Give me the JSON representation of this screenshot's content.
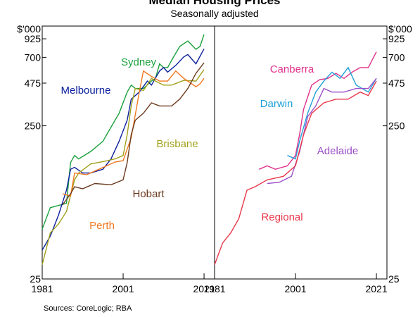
{
  "title": "Median Housing Prices",
  "subtitle": "Seasonally adjusted",
  "source": "Sources: CoreLogic; RBA",
  "chart_data": [
    {
      "type": "line",
      "axis_label": "$'000",
      "axis_side": "left",
      "log_scale": true,
      "xlim": [
        1981,
        2023.6
      ],
      "xticks": [
        1981,
        2001,
        2021
      ],
      "ylim": [
        25,
        1120
      ],
      "yticks": [
        25,
        250,
        475,
        700,
        925
      ],
      "series": [
        {
          "name": "Sydney",
          "color": "#1aa03c",
          "x": [
            1981,
            1983,
            1987,
            1988,
            1989,
            1990,
            1993,
            1996,
            1998,
            2000,
            2002,
            2003,
            2004,
            2006,
            2008,
            2009,
            2010,
            2011,
            2012,
            2013,
            2015,
            2017,
            2019,
            2020,
            2021
          ],
          "values": [
            53,
            73,
            78,
            144,
            160,
            152,
            170,
            198,
            245,
            302,
            415,
            461,
            438,
            438,
            490,
            510,
            634,
            600,
            600,
            670,
            825,
            895,
            790,
            825,
            987
          ]
        },
        {
          "name": "Melbourne",
          "color": "#0a1f9c",
          "x": [
            1981,
            1983,
            1985,
            1987,
            1988,
            1989,
            1991,
            1993,
            1996,
            1998,
            2000,
            2002,
            2003,
            2005,
            2007,
            2008,
            2010,
            2011,
            2012,
            2014,
            2016,
            2017,
            2019,
            2021
          ],
          "values": [
            38.6,
            47.6,
            65,
            95,
            130,
            134,
            123,
            123,
            130,
            152,
            198,
            272,
            373,
            415,
            490,
            461,
            570,
            600,
            560,
            620,
            705,
            730,
            635,
            795
          ]
        },
        {
          "name": "Brisbane",
          "color": "#a0a01a",
          "x": [
            1981,
            1983,
            1985,
            1987,
            1989,
            1990,
            1993,
            1996,
            1999,
            2001,
            2002,
            2003,
            2004,
            2006,
            2008,
            2009,
            2011,
            2013,
            2016,
            2019,
            2021
          ],
          "values": [
            31,
            50,
            57,
            69,
            111,
            123,
            141,
            146,
            152,
            160,
            219,
            337,
            438,
            425,
            510,
            490,
            461,
            461,
            495,
            490,
            582
          ]
        },
        {
          "name": "Perth",
          "color": "#f07820",
          "x": [
            1986,
            1988,
            1989,
            1992,
            1995,
            1999,
            2001,
            2003,
            2005,
            2006,
            2008,
            2010,
            2012,
            2014,
            2016,
            2019,
            2020,
            2021
          ],
          "values": [
            90,
            87,
            123,
            120,
            130,
            145,
            148,
            209,
            415,
            570,
            525,
            490,
            490,
            570,
            510,
            450,
            470,
            510
          ]
        },
        {
          "name": "Hobart",
          "color": "#6b3a1e",
          "x": [
            1986,
            1988,
            1989,
            1991,
            1994,
            1998,
            2001,
            2002,
            2003,
            2004,
            2006,
            2008,
            2010,
            2013,
            2015,
            2017,
            2019,
            2021
          ],
          "values": [
            76,
            90,
            100,
            97,
            105,
            103,
            111,
            144,
            219,
            272,
            302,
            353,
            337,
            337,
            373,
            438,
            550,
            645
          ]
        }
      ]
    },
    {
      "type": "line",
      "axis_label": "$'000",
      "axis_side": "right",
      "log_scale": true,
      "xlim": [
        1981,
        2023.6
      ],
      "xticks": [
        1981,
        2001,
        2021
      ],
      "ylim": [
        25,
        1120
      ],
      "yticks": [
        25,
        250,
        475,
        700,
        925
      ],
      "series": [
        {
          "name": "Canberra",
          "color": "#e0308c",
          "x": [
            1992,
            1994,
            1996,
            1999,
            2001,
            2002,
            2003,
            2005,
            2007,
            2009,
            2011,
            2013,
            2015,
            2017,
            2019,
            2021
          ],
          "values": [
            130,
            137,
            130,
            137,
            160,
            219,
            320,
            461,
            500,
            510,
            550,
            510,
            560,
            600,
            600,
            760
          ]
        },
        {
          "name": "Darwin",
          "color": "#20a0d8",
          "x": [
            1999,
            2001,
            2002,
            2004,
            2006,
            2008,
            2010,
            2012,
            2014,
            2016,
            2019,
            2021
          ],
          "values": [
            160,
            152,
            198,
            302,
            415,
            490,
            560,
            510,
            600,
            461,
            415,
            510
          ]
        },
        {
          "name": "Adelaide",
          "color": "#9b4fc8",
          "x": [
            1994,
            1997,
            2000,
            2002,
            2004,
            2006,
            2008,
            2010,
            2013,
            2016,
            2019,
            2021
          ],
          "values": [
            105,
            107,
            117,
            169,
            287,
            337,
            438,
            415,
            415,
            438,
            438,
            510
          ]
        },
        {
          "name": "Regional",
          "color": "#e8384a",
          "x": [
            1981,
            1983,
            1985,
            1987,
            1989,
            1991,
            1994,
            1998,
            2001,
            2003,
            2005,
            2008,
            2011,
            2014,
            2017,
            2019,
            2021
          ],
          "values": [
            31,
            43,
            50,
            62,
            95,
            100,
            111,
            117,
            137,
            219,
            302,
            353,
            373,
            373,
            415,
            394,
            490
          ]
        }
      ]
    }
  ]
}
